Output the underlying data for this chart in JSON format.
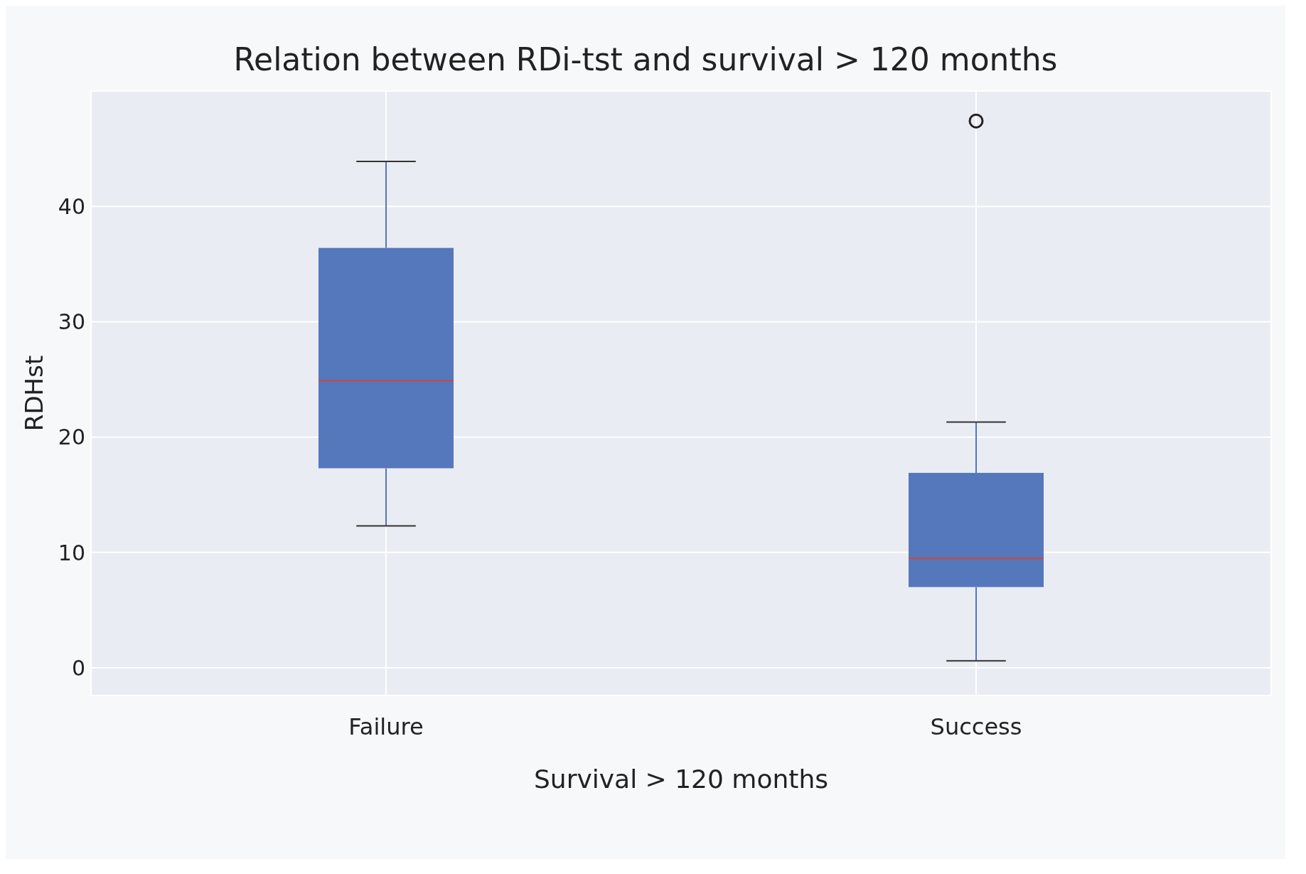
{
  "chart_data": {
    "type": "box",
    "title": "Relation between RDi-tst and survival > 120 months",
    "xlabel": "Survival > 120 months",
    "ylabel": "RDHst",
    "categories": [
      "Failure",
      "Success"
    ],
    "color": "#5577bb",
    "boxes": [
      {
        "low": 12.3,
        "q1": 17.3,
        "median": 24.9,
        "q3": 36.4,
        "high": 43.9
      },
      {
        "low": 0.6,
        "q1": 7.0,
        "median": 9.5,
        "q3": 16.9,
        "high": 21.3,
        "outliers": [
          47.4
        ]
      }
    ],
    "ylim": [
      -2.4,
      50
    ],
    "yticks": [
      0,
      10,
      20,
      30,
      40
    ],
    "grid": true
  }
}
